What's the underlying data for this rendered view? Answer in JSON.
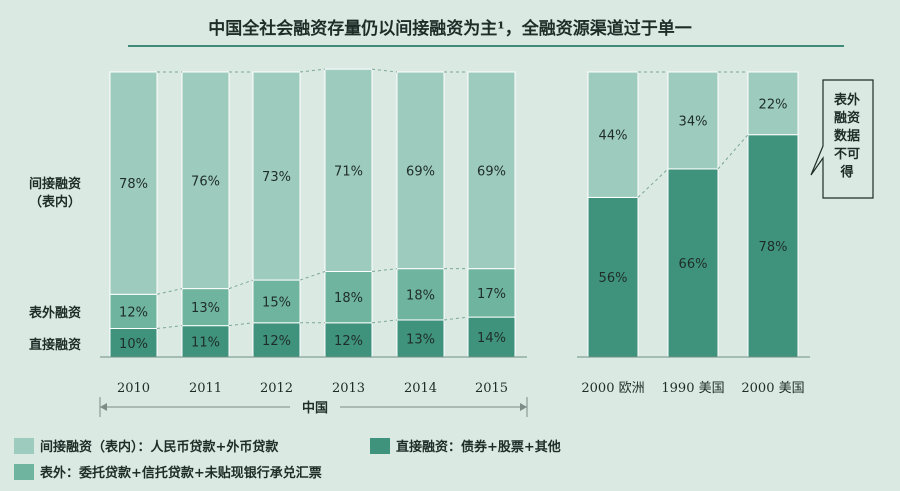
{
  "title": "中国全社会融资存量仍以间接融资为主¹，全融资源渠道过于单一",
  "colors": {
    "indirect": "#9dcbbd",
    "offbalance": "#6fb49e",
    "direct": "#3f937c",
    "background": "#dbe9e3",
    "accent": "#3f8a78"
  },
  "chart_data": [
    {
      "type": "bar",
      "stacked": true,
      "group_label": "中国",
      "categories": [
        "2010",
        "2011",
        "2012",
        "2013",
        "2014",
        "2015"
      ],
      "series": [
        {
          "name": "直接融资",
          "values": [
            10,
            11,
            12,
            12,
            13,
            14
          ]
        },
        {
          "name": "表外融资",
          "values": [
            12,
            13,
            15,
            18,
            18,
            17
          ]
        },
        {
          "name": "间接融资（表内）",
          "values": [
            78,
            76,
            73,
            71,
            69,
            69
          ]
        }
      ],
      "value_format": "%",
      "row_labels": [
        "间接融资",
        "（表内）",
        "表外融资",
        "直接融资"
      ]
    },
    {
      "type": "bar",
      "stacked": true,
      "categories": [
        "2000 欧洲",
        "1990 美国",
        "2000 美国"
      ],
      "series": [
        {
          "name": "直接融资",
          "values": [
            56,
            66,
            78
          ]
        },
        {
          "name": "间接融资（表内）",
          "values": [
            44,
            34,
            22
          ]
        }
      ],
      "value_format": "%"
    }
  ],
  "callout": [
    "表外",
    "融资",
    "数据",
    "不可",
    "得"
  ],
  "legend": [
    {
      "label": "间接融资（表内）：人民币贷款+外币贷款",
      "color": "#9dcbbd"
    },
    {
      "label": "直接融资：债券+股票+其他",
      "color": "#3f937c"
    },
    {
      "label": "表外：委托贷款+信托贷款+未贴现银行承兑汇票",
      "color": "#6fb49e"
    }
  ]
}
